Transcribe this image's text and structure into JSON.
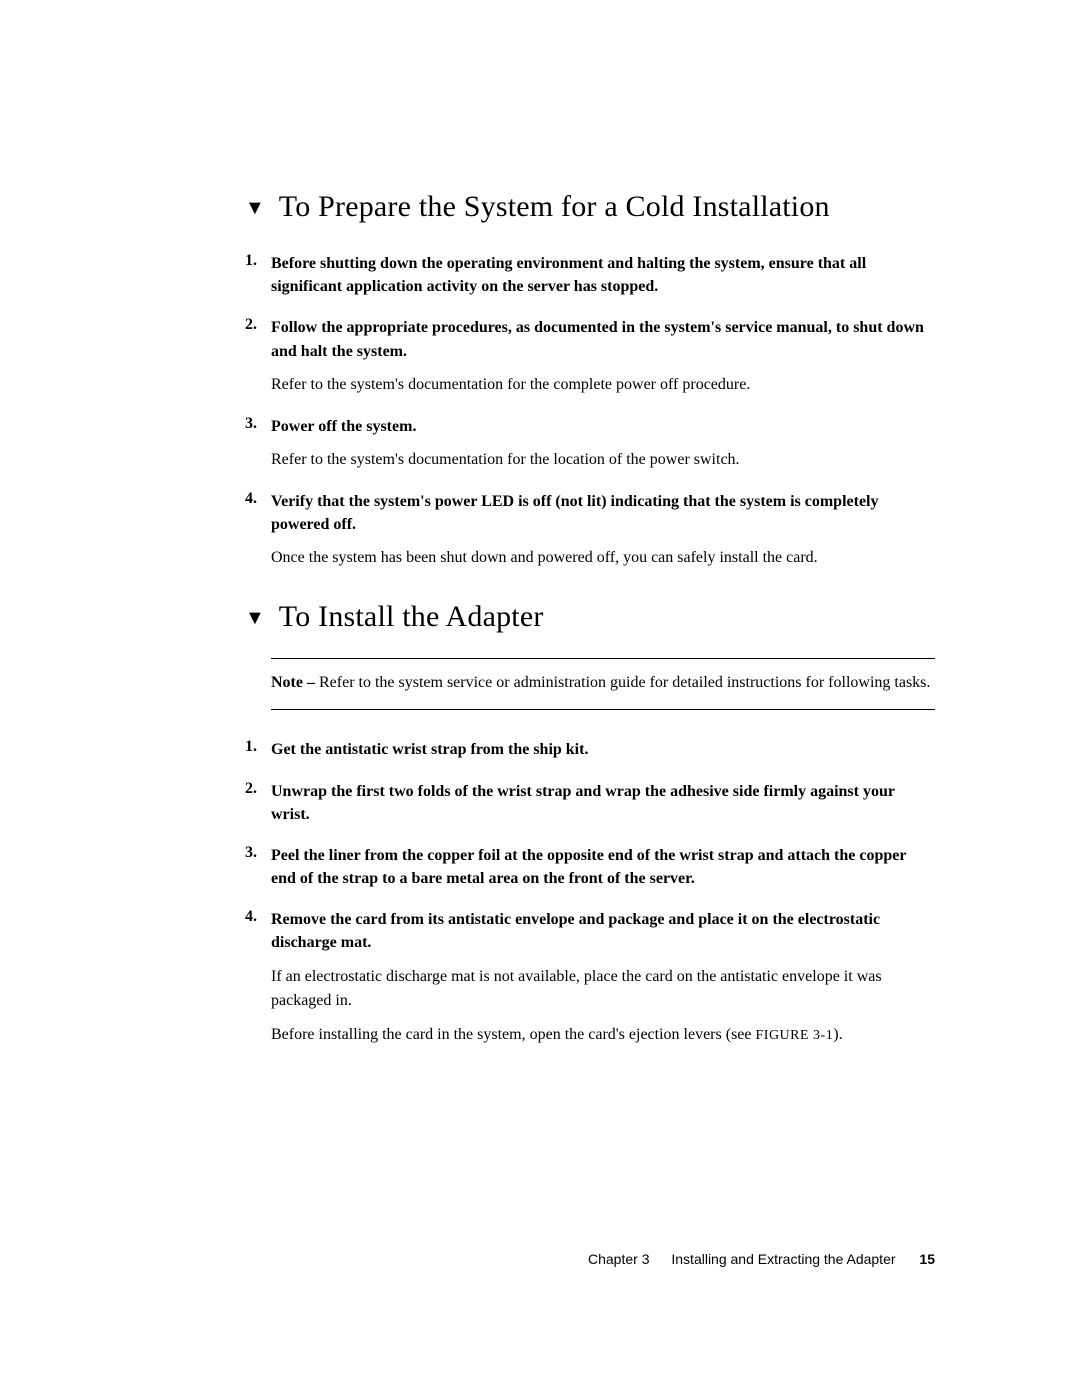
{
  "section1": {
    "marker": "▼",
    "title": "To Prepare the System for a Cold Installation",
    "steps": [
      {
        "head": "Before shutting down the operating environment and halting the system, ensure that all significant application activity on the server has stopped."
      },
      {
        "head": "Follow the appropriate procedures, as documented in the system's service manual, to shut down and halt the system.",
        "body": [
          "Refer to the system's documentation for the complete power off procedure."
        ]
      },
      {
        "head": "Power off the system.",
        "body": [
          "Refer to the system's documentation for the location of the power switch."
        ]
      },
      {
        "head": "Verify that the system's power LED is off (not lit) indicating that the system is completely powered off.",
        "body": [
          "Once the system has been shut down and powered off, you can safely install the card."
        ]
      }
    ]
  },
  "section2": {
    "marker": "▼",
    "title": "To Install the Adapter",
    "note": {
      "label": "Note –",
      "text": " Refer to the system service or administration guide for detailed instructions for following tasks."
    },
    "steps": [
      {
        "head": "Get the antistatic wrist strap from the ship kit."
      },
      {
        "head": "Unwrap the first two folds of the wrist strap and wrap the adhesive side firmly against your wrist."
      },
      {
        "head": "Peel the liner from the copper foil at the opposite end of the wrist strap and attach the copper end of the strap to a bare metal area on the front of the server."
      },
      {
        "head": "Remove the card from its antistatic envelope and package and place it on the electrostatic discharge mat.",
        "body": [
          "If an electrostatic discharge mat is not available, place the card on the antistatic envelope it was packaged in."
        ],
        "body2_prefix": "Before installing the card in the system, open the card's ejection levers (see ",
        "body2_figref": "FIGURE 3-1",
        "body2_suffix": ")."
      }
    ]
  },
  "footer": {
    "chapter": "Chapter 3",
    "title": "Installing and Extracting the Adapter",
    "page": "15"
  }
}
